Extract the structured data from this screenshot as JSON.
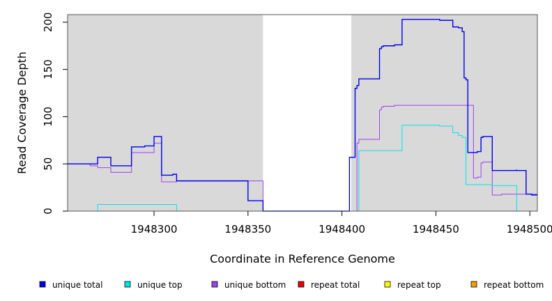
{
  "chart_data": {
    "type": "line",
    "step": true,
    "xlabel": "Coordinate in Reference Genome",
    "ylabel": "Read Coverage Depth",
    "xlim": [
      1948254,
      1948504
    ],
    "ylim": [
      0,
      208
    ],
    "xticks": [
      1948300,
      1948350,
      1948400,
      1948450,
      1948500
    ],
    "yticks": [
      0,
      50,
      100,
      150,
      200
    ],
    "grid": false,
    "background": "#d9d9d9",
    "highlight_region": [
      1948358,
      1948405
    ],
    "legend": {
      "placement": "bottom"
    },
    "series": [
      {
        "name": "unique total",
        "color": "#0000ee",
        "x": [
          1948254,
          1948270,
          1948277,
          1948288,
          1948295,
          1948300,
          1948304,
          1948310,
          1948312,
          1948350,
          1948350,
          1948358,
          1948358,
          1948404,
          1948404,
          1948405,
          1948407,
          1948408,
          1948409,
          1948420,
          1948421,
          1948422,
          1948428,
          1948432,
          1948452,
          1948459,
          1948462,
          1948464,
          1948465,
          1948466,
          1948467,
          1948472,
          1948474,
          1948475,
          1948480,
          1948480,
          1948485,
          1948493,
          1948493,
          1948498,
          1948501,
          1948504
        ],
        "y": [
          50,
          57,
          48,
          68,
          69,
          79,
          38,
          39,
          32,
          32,
          11,
          11,
          0,
          0,
          57,
          57,
          130,
          133,
          140,
          172,
          174,
          175,
          176,
          203,
          202,
          195,
          194,
          190,
          141,
          139,
          62,
          63,
          78,
          79,
          79,
          43,
          43,
          44,
          43,
          18,
          17,
          18
        ]
      },
      {
        "name": "unique top",
        "color": "#00e5e5",
        "x": [
          1948254,
          1948270,
          1948312,
          1948358,
          1948404,
          1948405,
          1948409,
          1948432,
          1948452,
          1948459,
          1948462,
          1948464,
          1948466,
          1948480,
          1948493,
          1948504
        ],
        "y": [
          0,
          7,
          0,
          0,
          0,
          0,
          64,
          91,
          90,
          83,
          80,
          78,
          28,
          27,
          0,
          0
        ]
      },
      {
        "name": "unique bottom",
        "color": "#a040f0",
        "x": [
          1948254,
          1948266,
          1948270,
          1948277,
          1948288,
          1948295,
          1948300,
          1948304,
          1948310,
          1948312,
          1948350,
          1948358,
          1948404,
          1948405,
          1948408,
          1948409,
          1948420,
          1948421,
          1948422,
          1948428,
          1948432,
          1948466,
          1948470,
          1948472,
          1948474,
          1948475,
          1948480,
          1948485,
          1948493,
          1948504
        ],
        "y": [
          50,
          48,
          46,
          41,
          62,
          62,
          72,
          31,
          31,
          32,
          32,
          0,
          0,
          0,
          72,
          76,
          107,
          110,
          111,
          112,
          112,
          112,
          35,
          36,
          51,
          52,
          17,
          18,
          18,
          18
        ]
      },
      {
        "name": "repeat total",
        "color": "#ee0000",
        "x": [
          1948254,
          1948504
        ],
        "y": [
          0,
          0
        ]
      },
      {
        "name": "repeat top",
        "color": "#ffff00",
        "x": [
          1948254,
          1948504
        ],
        "y": [
          0,
          0
        ]
      },
      {
        "name": "repeat bottom",
        "color": "#f0a000",
        "x": [
          1948254,
          1948504
        ],
        "y": [
          0,
          0
        ]
      }
    ]
  }
}
